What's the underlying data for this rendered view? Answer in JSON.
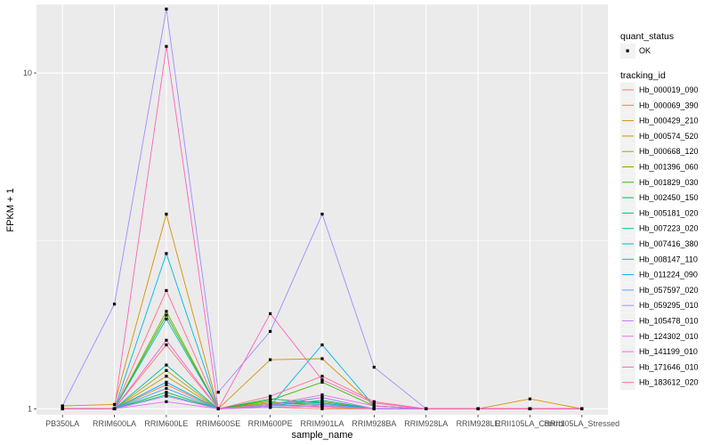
{
  "chart_data": {
    "type": "line",
    "xlabel": "sample_name",
    "ylabel": "FPKM + 1",
    "y_scale": "log",
    "ylim": [
      0.96,
      16
    ],
    "y_ticks": [
      1,
      10
    ],
    "y_tick_labels": [
      "1",
      "10"
    ],
    "grid": true,
    "categories": [
      "PB350LA",
      "RRIM600LA",
      "RRIM600LE",
      "RRIM600SE",
      "RRIM600PE",
      "RRIM901LA",
      "RRIM928BA",
      "RRIM928LA",
      "RRIM928LE",
      "RRII105LA_Control",
      "RRII105LA_Stressed"
    ],
    "legend_position": "right",
    "legend_quant": {
      "title": "quant_status",
      "entries": [
        "OK"
      ]
    },
    "legend_series_title": "tracking_id",
    "series": [
      {
        "name": "Hb_000019_090",
        "color": "#F8766D",
        "values": [
          1.0,
          1.0,
          1.55,
          1.0,
          1.01,
          1.0,
          1.0,
          1.0,
          1.0,
          1.0,
          1.0
        ]
      },
      {
        "name": "Hb_000069_390",
        "color": "#EA8331",
        "values": [
          1.0,
          1.0,
          1.18,
          1.0,
          1.03,
          1.01,
          1.0,
          1.0,
          1.0,
          1.0,
          1.0
        ]
      },
      {
        "name": "Hb_000429_210",
        "color": "#D89000",
        "values": [
          1.02,
          1.03,
          3.8,
          1.0,
          1.4,
          1.41,
          1.02,
          1.0,
          1.0,
          1.07,
          1.0
        ]
      },
      {
        "name": "Hb_000574_520",
        "color": "#C09B00",
        "values": [
          1.0,
          1.0,
          1.25,
          1.0,
          1.05,
          1.02,
          1.0,
          1.0,
          1.0,
          1.0,
          1.0
        ]
      },
      {
        "name": "Hb_000668_120",
        "color": "#A3A500",
        "values": [
          1.0,
          1.0,
          1.3,
          1.0,
          1.02,
          1.03,
          1.0,
          1.0,
          1.0,
          1.0,
          1.0
        ]
      },
      {
        "name": "Hb_001396_060",
        "color": "#7CAE00",
        "values": [
          1.0,
          1.0,
          1.95,
          1.0,
          1.04,
          1.05,
          1.0,
          1.0,
          1.0,
          1.0,
          1.0
        ]
      },
      {
        "name": "Hb_001829_030",
        "color": "#39B600",
        "values": [
          1.0,
          1.0,
          1.9,
          1.0,
          1.06,
          1.2,
          1.02,
          1.0,
          1.0,
          1.0,
          1.0
        ]
      },
      {
        "name": "Hb_002450_150",
        "color": "#00BB4E",
        "values": [
          1.0,
          1.0,
          1.12,
          1.0,
          1.07,
          1.04,
          1.0,
          1.0,
          1.0,
          1.0,
          1.0
        ]
      },
      {
        "name": "Hb_005181_020",
        "color": "#00BF7D",
        "values": [
          1.0,
          1.0,
          1.1,
          1.0,
          1.02,
          1.06,
          1.0,
          1.0,
          1.0,
          1.0,
          1.0
        ]
      },
      {
        "name": "Hb_007223_020",
        "color": "#00C1A3",
        "values": [
          1.0,
          1.0,
          1.35,
          1.0,
          1.01,
          1.02,
          1.0,
          1.0,
          1.0,
          1.0,
          1.0
        ]
      },
      {
        "name": "Hb_007416_380",
        "color": "#00BFC4",
        "values": [
          1.0,
          1.0,
          1.85,
          1.0,
          1.03,
          1.08,
          1.0,
          1.0,
          1.0,
          1.0,
          1.0
        ]
      },
      {
        "name": "Hb_008147_110",
        "color": "#00B9E3",
        "values": [
          1.0,
          1.0,
          2.9,
          1.0,
          1.02,
          1.55,
          1.02,
          1.0,
          1.0,
          1.0,
          1.0
        ]
      },
      {
        "name": "Hb_011224_090",
        "color": "#00ADFA",
        "values": [
          1.0,
          1.0,
          1.2,
          1.0,
          1.03,
          1.04,
          1.0,
          1.0,
          1.0,
          1.0,
          1.0
        ]
      },
      {
        "name": "Hb_057597_020",
        "color": "#619CFF",
        "values": [
          1.0,
          1.0,
          1.15,
          1.0,
          1.02,
          1.03,
          1.0,
          1.0,
          1.0,
          1.0,
          1.0
        ]
      },
      {
        "name": "Hb_059295_010",
        "color": "#9F8CFF",
        "values": [
          1.02,
          2.05,
          15.5,
          1.12,
          1.7,
          3.8,
          1.33,
          1.0,
          1.0,
          1.0,
          1.0
        ]
      },
      {
        "name": "Hb_105478_010",
        "color": "#C77CFF",
        "values": [
          1.0,
          1.0,
          1.09,
          1.0,
          1.02,
          1.08,
          1.0,
          1.0,
          1.0,
          1.0,
          1.0
        ]
      },
      {
        "name": "Hb_124302_010",
        "color": "#E76BF3",
        "values": [
          1.0,
          1.0,
          1.05,
          1.0,
          1.01,
          1.02,
          1.0,
          1.0,
          1.0,
          1.0,
          1.0
        ]
      },
      {
        "name": "Hb_141199_010",
        "color": "#FA62DB",
        "values": [
          1.0,
          1.0,
          1.6,
          1.0,
          1.03,
          1.1,
          1.02,
          1.0,
          1.0,
          1.0,
          1.0
        ]
      },
      {
        "name": "Hb_171646_010",
        "color": "#FF62BC",
        "values": [
          1.0,
          1.0,
          12.0,
          1.0,
          1.92,
          1.22,
          1.04,
          1.0,
          1.0,
          1.0,
          1.0
        ]
      },
      {
        "name": "Hb_183612_020",
        "color": "#FF6C91",
        "values": [
          1.0,
          1.0,
          2.25,
          1.0,
          1.09,
          1.25,
          1.05,
          1.0,
          1.0,
          1.0,
          1.0
        ]
      }
    ]
  }
}
